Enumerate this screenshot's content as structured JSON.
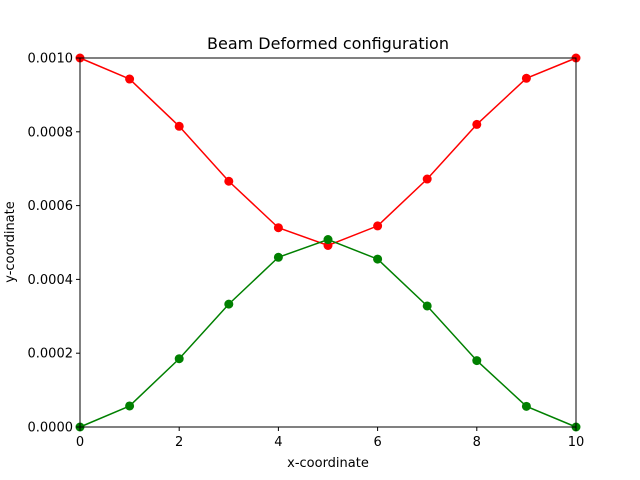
{
  "chart_data": {
    "type": "line",
    "title": "Beam Deformed configuration",
    "xlabel": "x-coordinate",
    "ylabel": "y-coordinate",
    "xlim": [
      0,
      10
    ],
    "ylim": [
      0,
      0.001
    ],
    "xticks": [
      0,
      2,
      4,
      6,
      8,
      10
    ],
    "xtick_labels": [
      "0",
      "2",
      "4",
      "6",
      "8",
      "10"
    ],
    "yticks": [
      0,
      0.0002,
      0.0004,
      0.0006,
      0.0008,
      0.001
    ],
    "ytick_labels": [
      "0.0000",
      "0.0002",
      "0.0004",
      "0.0006",
      "0.0008",
      "0.0010"
    ],
    "grid": false,
    "legend": false,
    "x": [
      0,
      1,
      2,
      3,
      4,
      5,
      6,
      7,
      8,
      9,
      10
    ],
    "series": [
      {
        "color": "#ff0000",
        "marker": "circle",
        "values": [
          0.001,
          0.000943,
          0.000815,
          0.000666,
          0.00054,
          0.000492,
          0.000545,
          0.000672,
          0.00082,
          0.000945,
          0.001
        ]
      },
      {
        "color": "#008000",
        "marker": "circle",
        "values": [
          0.0,
          5.7e-05,
          0.000185,
          0.000333,
          0.00046,
          0.000508,
          0.000455,
          0.000328,
          0.00018,
          5.6e-05,
          0.0
        ]
      }
    ]
  }
}
